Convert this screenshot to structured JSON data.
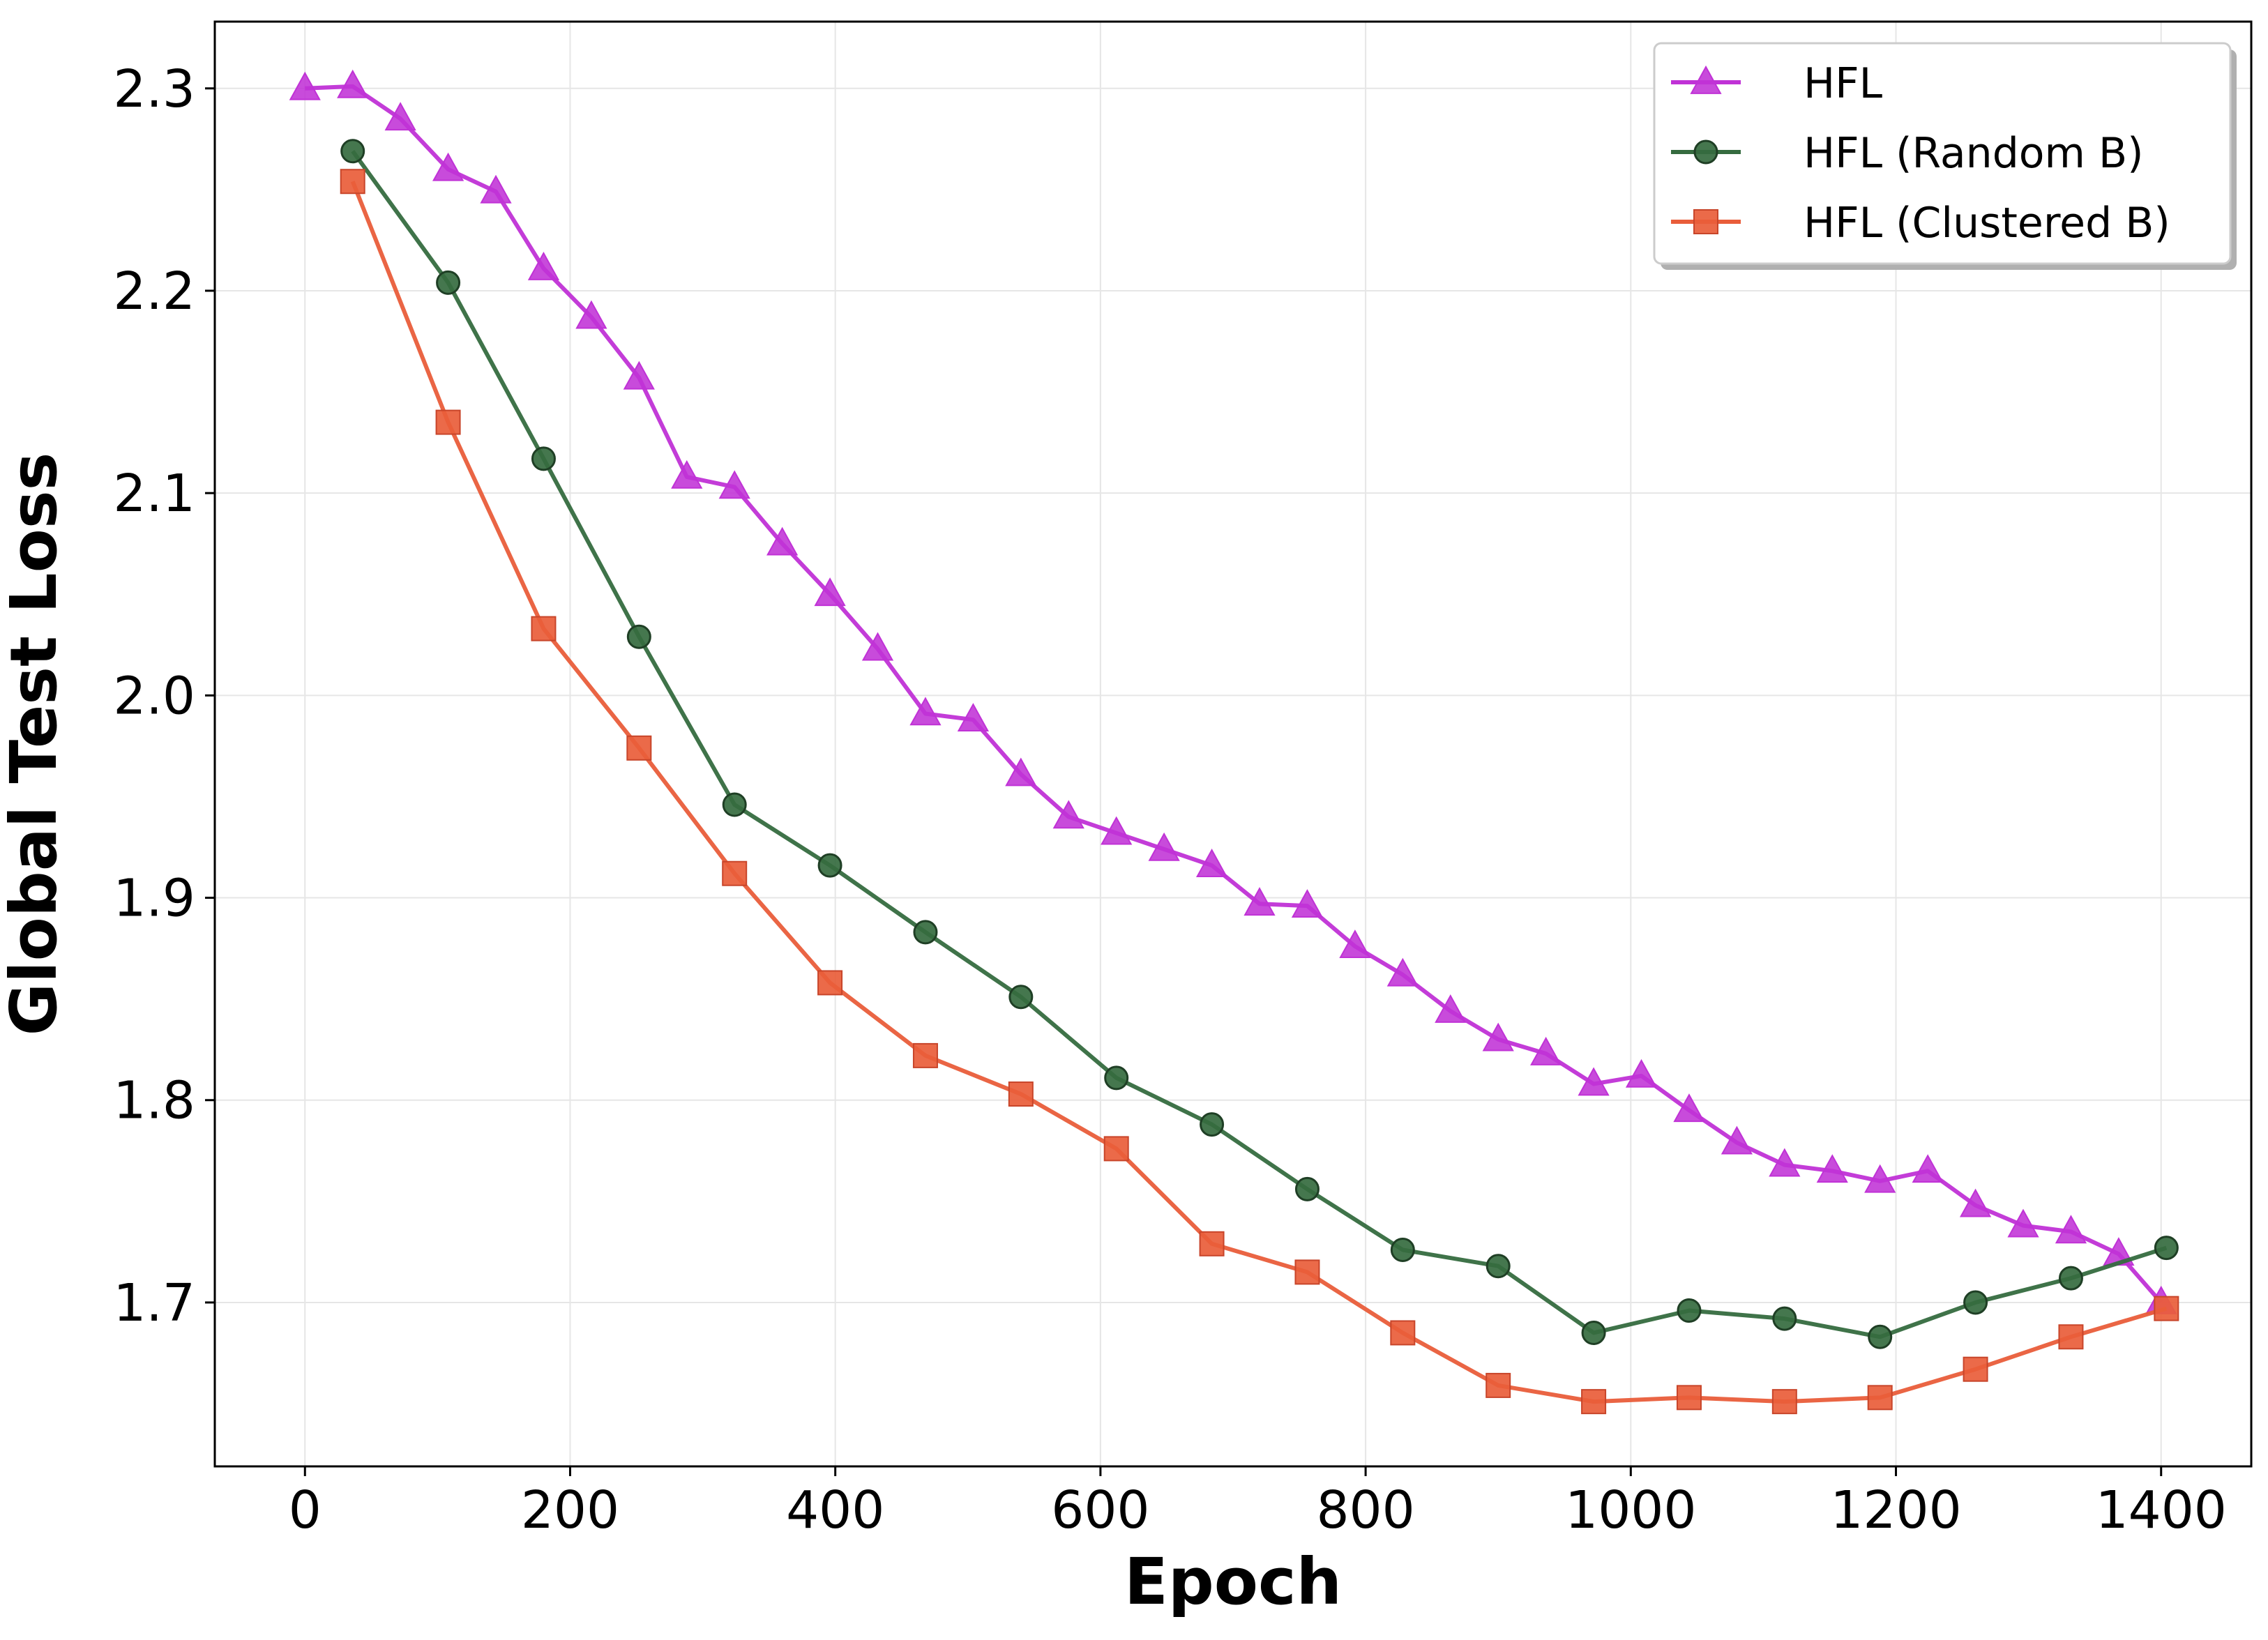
{
  "chart_data": {
    "type": "line",
    "title": "",
    "xlabel": "Epoch",
    "ylabel": "Global Test Loss",
    "xlim": [
      -68,
      1468
    ],
    "ylim": [
      1.619,
      2.333
    ],
    "xticks": [
      0,
      200,
      400,
      600,
      800,
      1000,
      1200,
      1400
    ],
    "xtick_labels": [
      "0",
      "200",
      "400",
      "600",
      "800",
      "1000",
      "1200",
      "1400"
    ],
    "yticks": [
      1.7,
      1.8,
      1.9,
      2.0,
      2.1,
      2.2,
      2.3
    ],
    "ytick_labels": [
      "1.7",
      "1.8",
      "1.9",
      "2.0",
      "2.1",
      "2.2",
      "2.3"
    ],
    "grid": true,
    "legend_position": "top-right",
    "series": [
      {
        "name": "HFL",
        "color": "#C032D6",
        "marker": "triangle",
        "x": [
          0,
          36,
          72,
          108,
          144,
          180,
          216,
          252,
          288,
          324,
          360,
          396,
          432,
          468,
          504,
          540,
          576,
          612,
          648,
          684,
          720,
          756,
          792,
          828,
          864,
          900,
          936,
          972,
          1008,
          1044,
          1080,
          1116,
          1152,
          1188,
          1224,
          1260,
          1296,
          1332,
          1368,
          1400
        ],
        "y": [
          2.3,
          2.301,
          2.285,
          2.26,
          2.249,
          2.211,
          2.187,
          2.157,
          2.108,
          2.103,
          2.075,
          2.05,
          2.023,
          1.991,
          1.988,
          1.961,
          1.94,
          1.932,
          1.924,
          1.916,
          1.897,
          1.896,
          1.876,
          1.862,
          1.844,
          1.83,
          1.823,
          1.808,
          1.812,
          1.795,
          1.779,
          1.768,
          1.765,
          1.76,
          1.765,
          1.748,
          1.738,
          1.735,
          1.724,
          1.7
        ]
      },
      {
        "name": "HFL (Random B)",
        "color": "#356B3F",
        "marker": "circle",
        "x": [
          36,
          108,
          180,
          252,
          324,
          396,
          468,
          540,
          612,
          684,
          756,
          828,
          900,
          972,
          1044,
          1116,
          1188,
          1260,
          1332,
          1404
        ],
        "y": [
          2.269,
          2.204,
          2.117,
          2.029,
          1.946,
          1.916,
          1.883,
          1.851,
          1.811,
          1.788,
          1.756,
          1.726,
          1.718,
          1.685,
          1.696,
          1.692,
          1.683,
          1.7,
          1.712,
          1.727
        ]
      },
      {
        "name": "HFL (Clustered B)",
        "color": "#E95D3A",
        "marker": "square",
        "x": [
          36,
          108,
          180,
          252,
          324,
          396,
          468,
          540,
          612,
          684,
          756,
          828,
          900,
          972,
          1044,
          1116,
          1188,
          1260,
          1332,
          1404
        ],
        "y": [
          2.254,
          2.135,
          2.033,
          1.974,
          1.912,
          1.858,
          1.822,
          1.803,
          1.776,
          1.729,
          1.715,
          1.685,
          1.659,
          1.651,
          1.653,
          1.651,
          1.653,
          1.667,
          1.683,
          1.697
        ]
      }
    ]
  }
}
